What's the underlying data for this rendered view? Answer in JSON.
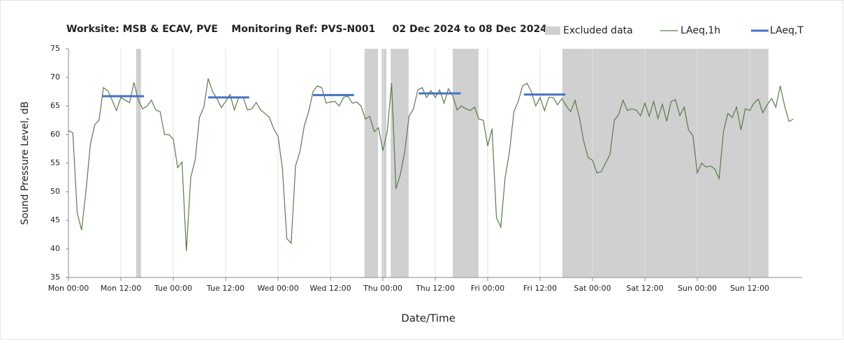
{
  "chart_data": {
    "type": "line",
    "title": "Worksite: MSB & ECAV, PVE    Monitoring Ref: PVS-N001     02 Dec 2024 to 08 Dec 2024",
    "xlabel": "Date/Time",
    "ylabel": "Sound Pressure Level, dB",
    "xlim": [
      0,
      168
    ],
    "ylim": [
      35,
      75
    ],
    "yticks": [
      35,
      40,
      45,
      50,
      55,
      60,
      65,
      70,
      75
    ],
    "xticks": [
      {
        "value": 0,
        "label": "Mon 00:00"
      },
      {
        "value": 12,
        "label": "Mon 12:00"
      },
      {
        "value": 24,
        "label": "Tue 00:00"
      },
      {
        "value": 36,
        "label": "Tue 12:00"
      },
      {
        "value": 48,
        "label": "Wed 00:00"
      },
      {
        "value": 60,
        "label": "Wed 12:00"
      },
      {
        "value": 72,
        "label": "Thu 00:00"
      },
      {
        "value": 84,
        "label": "Thu 12:00"
      },
      {
        "value": 96,
        "label": "Fri 00:00"
      },
      {
        "value": 108,
        "label": "Fri 12:00"
      },
      {
        "value": 120,
        "label": "Sat 00:00"
      },
      {
        "value": 132,
        "label": "Sat 12:00"
      },
      {
        "value": 144,
        "label": "Sun 00:00"
      },
      {
        "value": 156,
        "label": "Sun 12:00"
      }
    ],
    "grid": true,
    "excluded": {
      "name": "Excluded data",
      "color": "#d0d0d0",
      "ranges": [
        [
          15.5,
          16.6
        ],
        [
          67.8,
          70.9
        ],
        [
          71.7,
          72.8
        ],
        [
          73.8,
          77.9
        ],
        [
          88,
          93.9
        ],
        [
          113.1,
          160.3
        ]
      ]
    },
    "series": [
      {
        "name": "LAeq,1h",
        "color": "#5a7a4a",
        "x": [
          0,
          1,
          2,
          3,
          4,
          5,
          6,
          7,
          8,
          9,
          10,
          11,
          12,
          13,
          14,
          15,
          16,
          17,
          18,
          19,
          20,
          21,
          22,
          23,
          24,
          25,
          26,
          27,
          28,
          29,
          30,
          31,
          32,
          33,
          34,
          35,
          36,
          37,
          38,
          39,
          40,
          41,
          42,
          43,
          44,
          45,
          46,
          47,
          48,
          49,
          50,
          51,
          52,
          53,
          54,
          55,
          56,
          57,
          58,
          59,
          60,
          61,
          62,
          63,
          64,
          65,
          66,
          67,
          68,
          69,
          70,
          71,
          72,
          73,
          74,
          75,
          76,
          77,
          78,
          79,
          80,
          81,
          82,
          83,
          84,
          85,
          86,
          87,
          88,
          89,
          90,
          91,
          92,
          93,
          94,
          95,
          96,
          97,
          98,
          99,
          100,
          101,
          102,
          103,
          104,
          105,
          106,
          107,
          108,
          109,
          110,
          111,
          112,
          113,
          114,
          115,
          116,
          117,
          118,
          119,
          120,
          121,
          122,
          123,
          124,
          125,
          126,
          127,
          128,
          129,
          130,
          131,
          132,
          133,
          134,
          135,
          136,
          137,
          138,
          139,
          140,
          141,
          142,
          143,
          144,
          145,
          146,
          147,
          148,
          149,
          150,
          151,
          152,
          153,
          154,
          155,
          156,
          157,
          158,
          159,
          160,
          161,
          162,
          163,
          164,
          165,
          166
        ],
        "values": [
          60.7,
          60.3,
          46.3,
          43.3,
          50,
          58.2,
          61.7,
          62.5,
          68.2,
          67.7,
          66,
          64.2,
          66.5,
          66,
          65.6,
          69.1,
          66,
          64.5,
          65,
          66,
          64.3,
          64,
          60,
          60,
          59.2,
          54.2,
          55.2,
          39.6,
          52.5,
          55.5,
          63,
          64.8,
          69.8,
          67.5,
          66.3,
          64.7,
          65.8,
          67,
          64.3,
          66.5,
          66.5,
          64.3,
          64.5,
          65.6,
          64.3,
          63.7,
          63,
          61,
          59.7,
          54,
          41.8,
          41,
          54.5,
          57,
          61.5,
          64,
          67.5,
          68.5,
          68.2,
          65.5,
          65.7,
          65.8,
          65,
          66.5,
          66.7,
          65.5,
          65.7,
          65,
          62.7,
          63.2,
          60.5,
          61.2,
          57.2,
          60.5,
          69,
          50.5,
          53,
          57,
          63.2,
          64.5,
          67.8,
          68.2,
          66.5,
          67.7,
          66.5,
          67.8,
          65.5,
          68,
          66.8,
          64.3,
          65,
          64.5,
          64.2,
          64.8,
          62.7,
          62.5,
          58,
          61,
          45.5,
          43.8,
          52.5,
          57,
          64,
          65.8,
          68.5,
          69,
          67.5,
          65,
          66.5,
          64.2,
          66.5,
          66.5,
          65.2,
          66.3,
          65,
          64,
          66,
          63,
          58.8,
          56,
          55.5,
          53.3,
          53.5,
          55,
          56.5,
          62.5,
          63.5,
          66,
          64.2,
          64.5,
          64.3,
          63.3,
          65.5,
          63.2,
          65.8,
          62.8,
          65.3,
          62.3,
          65.8,
          66.1,
          63.3,
          64.8,
          60.8,
          59.8,
          53.3,
          55,
          54.3,
          54.5,
          54,
          52.3,
          60.5,
          63.7,
          63,
          64.8,
          60.8,
          64.5,
          64.2,
          65.5,
          66.2,
          63.8,
          65.2,
          66.3,
          64.8,
          68.5,
          65,
          62.3,
          62.7
        ]
      },
      {
        "name": "LAeq,T",
        "color": "#4472c4",
        "segments": [
          {
            "start": 7.8,
            "end": 17.3,
            "value": 66.7
          },
          {
            "start": 32,
            "end": 41.4,
            "value": 66.5
          },
          {
            "start": 56,
            "end": 65.4,
            "value": 66.9
          },
          {
            "start": 80.2,
            "end": 89.8,
            "value": 67.2
          },
          {
            "start": 104.3,
            "end": 113.8,
            "value": 67
          }
        ]
      }
    ]
  }
}
